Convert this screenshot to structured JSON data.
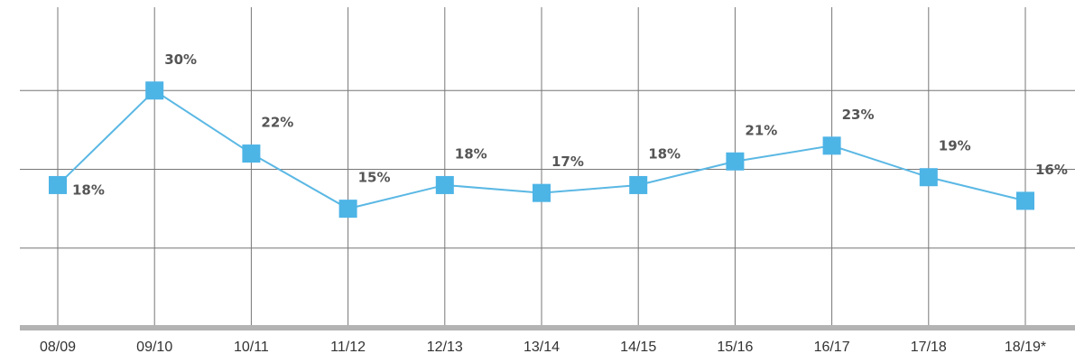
{
  "chart_data": {
    "type": "line",
    "categories": [
      "08/09",
      "09/10",
      "10/11",
      "11/12",
      "12/13",
      "13/14",
      "14/15",
      "15/16",
      "16/17",
      "17/18",
      "18/19*"
    ],
    "values": [
      18,
      30,
      22,
      15,
      18,
      17,
      18,
      21,
      23,
      19,
      16
    ],
    "value_labels": [
      "18%",
      "30%",
      "22%",
      "15%",
      "18%",
      "17%",
      "18%",
      "21%",
      "23%",
      "19%",
      "16%"
    ],
    "color": "#5bb8e4",
    "ylim": [
      0,
      40
    ],
    "yticks": [
      10,
      20,
      30
    ],
    "grid": true
  }
}
